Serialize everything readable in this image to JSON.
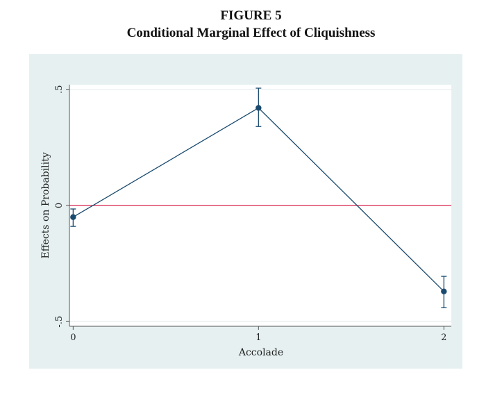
{
  "figure": {
    "label": "FIGURE 5",
    "title": "Conditional Marginal Effect of Cliquishness"
  },
  "chart_data": {
    "type": "line",
    "xlabel": "Accolade",
    "ylabel": "Effects on Probability",
    "x": [
      0,
      1,
      2
    ],
    "x_tick_labels": [
      "0",
      "1",
      "2"
    ],
    "y_ticks": [
      -0.5,
      0,
      0.5
    ],
    "y_tick_labels": [
      "-.5",
      "0",
      ".5"
    ],
    "xlim": [
      -0.02,
      2.04
    ],
    "ylim": [
      -0.52,
      0.52
    ],
    "series": [
      {
        "values": [
          -0.05,
          0.42,
          -0.37
        ],
        "ci_lower": [
          -0.09,
          0.34,
          -0.44
        ],
        "ci_upper": [
          -0.015,
          0.505,
          -0.305
        ]
      }
    ],
    "reference_line": {
      "y": 0,
      "color": "#d6204e"
    },
    "colors": {
      "series": "#1a4a6e",
      "background": "#e6f0f0",
      "plot_area": "#ffffff",
      "grid": "#e6ecec"
    },
    "grid": true
  }
}
